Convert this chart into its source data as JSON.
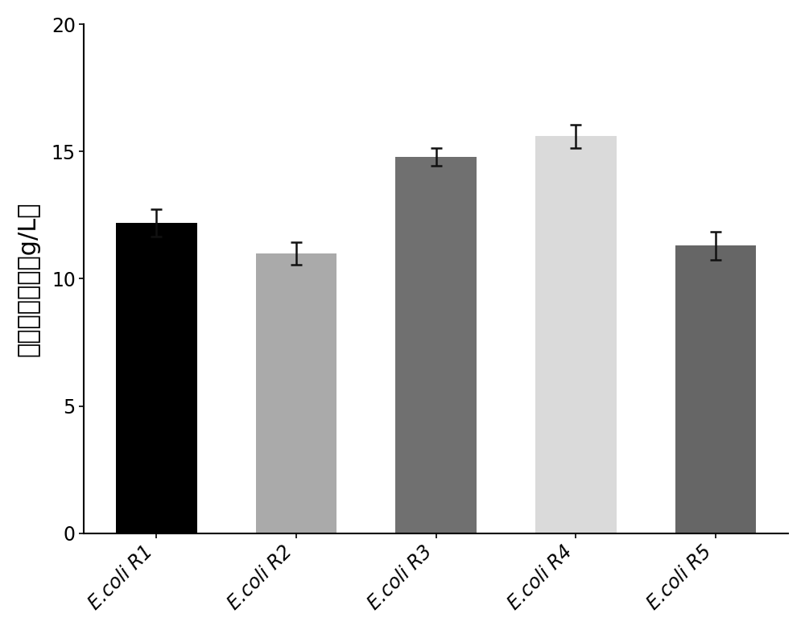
{
  "categories": [
    "E.coli R1",
    "E.coli R2",
    "E.coli R3",
    "E.coli R4",
    "E.coli R5"
  ],
  "values": [
    12.2,
    11.0,
    14.8,
    15.6,
    11.3
  ],
  "errors": [
    0.55,
    0.45,
    0.35,
    0.45,
    0.55
  ],
  "bar_colors": [
    "#000000",
    "#aaaaaa",
    "#707070",
    "#dadada",
    "#666666"
  ],
  "ylabel": "羟基酰醇浓度（g/L）",
  "ylim": [
    0,
    20
  ],
  "yticks": [
    0,
    5,
    10,
    15,
    20
  ],
  "background_color": "#ffffff",
  "bar_width": 0.58,
  "ylabel_fontsize": 22,
  "tick_fontsize": 17,
  "xtick_rotation": 45,
  "error_capsize": 5,
  "error_linewidth": 1.8,
  "error_color": "#111111"
}
